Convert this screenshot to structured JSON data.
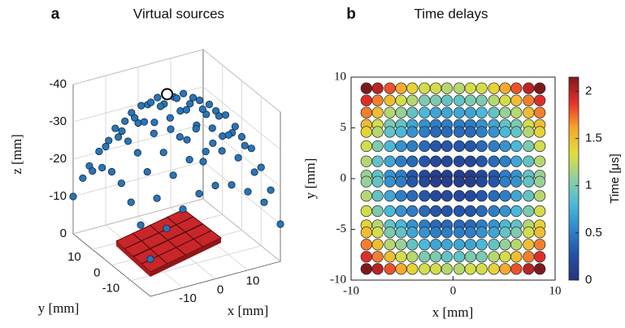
{
  "chart_data": [
    {
      "type": "scatter3d",
      "label": "a",
      "title": "Virtual sources",
      "xlabel": "x [mm]",
      "ylabel": "y [mm]",
      "zlabel": "z [mm]",
      "x": [
        -20,
        -15,
        -10,
        -5,
        0,
        5,
        10,
        15,
        20
      ],
      "y": [
        -20,
        -15,
        -10,
        -5,
        0,
        5,
        10,
        15,
        20
      ],
      "z": [
        [
          -10,
          -17,
          -21,
          -24,
          -25,
          -24,
          -21,
          -17,
          -10
        ],
        [
          -17,
          -23,
          -28,
          -31,
          -32,
          -31,
          -28,
          -23,
          -17
        ],
        [
          -21,
          -28,
          -32,
          -35,
          -36,
          -35,
          -32,
          -28,
          -21
        ],
        [
          -24,
          -31,
          -35,
          -38,
          -39,
          -38,
          -35,
          -31,
          -24
        ],
        [
          -25,
          -32,
          -36,
          -39,
          -40,
          -39,
          -36,
          -32,
          -25
        ],
        [
          -24,
          -31,
          -35,
          -38,
          -39,
          -38,
          -35,
          -31,
          -24
        ],
        [
          -21,
          -28,
          -32,
          -35,
          -36,
          -35,
          -32,
          -28,
          -21
        ],
        [
          -17,
          -23,
          -28,
          -31,
          -32,
          -31,
          -28,
          -23,
          -17
        ],
        [
          -10,
          -17,
          -21,
          -24,
          -25,
          -24,
          -21,
          -17,
          -10
        ]
      ],
      "highlight": {
        "x": 0,
        "y": 5,
        "z": -39
      },
      "xlim": [
        -20,
        20
      ],
      "ylim": [
        -20,
        20
      ],
      "zlim": [
        -40,
        0
      ],
      "xticks": [
        -10,
        0,
        10
      ],
      "yticks": [
        -10,
        0,
        10
      ],
      "zticks": [
        -40,
        -30,
        -20,
        -10,
        0
      ],
      "color": "#2b74b5",
      "grid": true
    },
    {
      "type": "heatmap",
      "label": "b",
      "title": "Time delays",
      "xlabel": "x [mm]",
      "ylabel": "y [mm]",
      "colorbar_label": "Time [μs]",
      "x": [
        -8.5,
        -7.4,
        -6.2,
        -5.1,
        -4,
        -2.8,
        -1.7,
        -0.6,
        0.6,
        1.7,
        2.8,
        4,
        5.1,
        6.2,
        7.4,
        8.5
      ],
      "y": [
        8.9,
        7.7,
        6.5,
        5.3,
        4.6,
        3.2,
        1.7,
        0.3,
        -0.3,
        -1.7,
        -3.2,
        -4.6,
        -5.3,
        -6.5,
        -7.7,
        -8.9
      ],
      "values": [
        [
          2.2,
          2.0,
          1.8,
          1.6,
          1.4,
          1.3,
          1.3,
          1.2,
          1.2,
          1.3,
          1.3,
          1.4,
          1.6,
          1.8,
          2.0,
          2.2
        ],
        [
          1.9,
          1.7,
          1.5,
          1.3,
          1.2,
          1.0,
          1.0,
          0.9,
          0.9,
          1.0,
          1.0,
          1.2,
          1.3,
          1.5,
          1.7,
          1.9
        ],
        [
          1.7,
          1.5,
          1.2,
          1.1,
          0.9,
          0.8,
          0.7,
          0.7,
          0.7,
          0.7,
          0.8,
          0.9,
          1.1,
          1.2,
          1.5,
          1.7
        ],
        [
          1.5,
          1.3,
          1.0,
          0.9,
          0.7,
          0.6,
          0.5,
          0.5,
          0.5,
          0.5,
          0.6,
          0.7,
          0.9,
          1.0,
          1.3,
          1.5
        ],
        [
          1.4,
          1.2,
          0.9,
          0.8,
          0.6,
          0.5,
          0.4,
          0.4,
          0.4,
          0.4,
          0.5,
          0.6,
          0.8,
          0.9,
          1.2,
          1.4
        ],
        [
          1.3,
          1.0,
          0.8,
          0.6,
          0.5,
          0.4,
          0.3,
          0.3,
          0.3,
          0.3,
          0.4,
          0.5,
          0.6,
          0.8,
          1.0,
          1.3
        ],
        [
          1.2,
          0.9,
          0.7,
          0.5,
          0.4,
          0.3,
          0.2,
          0.2,
          0.2,
          0.2,
          0.3,
          0.4,
          0.5,
          0.7,
          0.9,
          1.2
        ],
        [
          1.1,
          0.9,
          0.6,
          0.5,
          0.3,
          0.2,
          0.1,
          0.1,
          0.1,
          0.1,
          0.2,
          0.3,
          0.5,
          0.6,
          0.9,
          1.1
        ],
        [
          1.1,
          0.9,
          0.6,
          0.5,
          0.3,
          0.2,
          0.1,
          0.1,
          0.1,
          0.1,
          0.2,
          0.3,
          0.5,
          0.6,
          0.9,
          1.1
        ],
        [
          1.2,
          0.9,
          0.7,
          0.5,
          0.4,
          0.3,
          0.2,
          0.2,
          0.2,
          0.2,
          0.3,
          0.4,
          0.5,
          0.7,
          0.9,
          1.2
        ],
        [
          1.3,
          1.0,
          0.8,
          0.6,
          0.5,
          0.4,
          0.3,
          0.3,
          0.3,
          0.3,
          0.4,
          0.5,
          0.6,
          0.8,
          1.0,
          1.3
        ],
        [
          1.4,
          1.2,
          0.9,
          0.8,
          0.6,
          0.5,
          0.4,
          0.4,
          0.4,
          0.4,
          0.5,
          0.6,
          0.8,
          0.9,
          1.2,
          1.4
        ],
        [
          1.5,
          1.3,
          1.0,
          0.9,
          0.7,
          0.6,
          0.5,
          0.5,
          0.5,
          0.5,
          0.6,
          0.7,
          0.9,
          1.0,
          1.3,
          1.5
        ],
        [
          1.7,
          1.5,
          1.2,
          1.1,
          0.9,
          0.8,
          0.7,
          0.7,
          0.7,
          0.7,
          0.8,
          0.9,
          1.1,
          1.2,
          1.5,
          1.7
        ],
        [
          1.9,
          1.7,
          1.5,
          1.3,
          1.2,
          1.0,
          1.0,
          0.9,
          0.9,
          1.0,
          1.0,
          1.2,
          1.3,
          1.5,
          1.7,
          1.9
        ],
        [
          2.2,
          2.0,
          1.8,
          1.6,
          1.4,
          1.3,
          1.3,
          1.2,
          1.2,
          1.3,
          1.3,
          1.4,
          1.6,
          1.8,
          2.0,
          2.2
        ]
      ],
      "xlim": [
        -10,
        10
      ],
      "ylim": [
        -10,
        10
      ],
      "xticks": [
        -10,
        0,
        10
      ],
      "yticks": [
        -10,
        -5,
        0,
        5,
        10
      ],
      "clim": [
        0,
        2.15
      ],
      "cticks": [
        0,
        0.5,
        1,
        1.5,
        2
      ],
      "colormap": [
        "#27337e",
        "#2350a6",
        "#2f86cc",
        "#4bbad8",
        "#8fd0a0",
        "#e0df3a",
        "#f8a52f",
        "#e6302a",
        "#7d1a1c"
      ]
    }
  ]
}
